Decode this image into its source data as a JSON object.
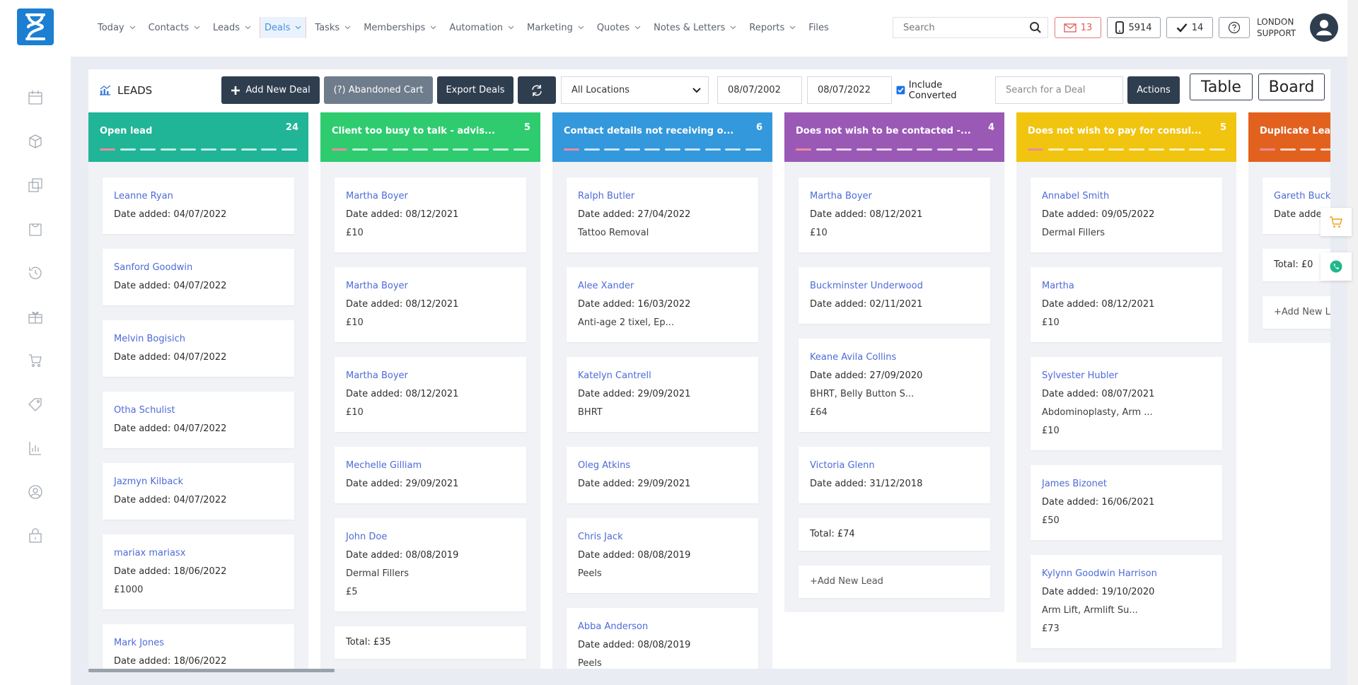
{
  "nav": {
    "items": [
      "Today",
      "Contacts",
      "Leads",
      "Deals",
      "Tasks",
      "Memberships",
      "Automation",
      "Marketing",
      "Quotes",
      "Notes & Letters",
      "Reports",
      "Files"
    ],
    "active": 3
  },
  "header": {
    "search_placeholder": "Search",
    "mail_count": "13",
    "phone_count": "5914",
    "task_count": "14",
    "user_line1": "LONDON",
    "user_line2": "SUPPORT"
  },
  "toolbar": {
    "title": "LEADS",
    "add_button": "Add New Deal",
    "abandoned_button": "(?) Abandoned Cart",
    "export_button": "Export Deals",
    "location": "All Locations",
    "date_from": "08/07/2002",
    "date_to": "08/07/2022",
    "include_converted": "Include Converted",
    "deal_search_placeholder": "Search for a Deal",
    "actions_button": "Actions",
    "table_button": "Table",
    "board_button": "Board"
  },
  "columns": [
    {
      "title": "Open lead",
      "count": 24,
      "color": "#1fb596",
      "cards": [
        {
          "name": "Leanne Ryan",
          "date": "Date added: 04/07/2022",
          "lines": []
        },
        {
          "name": "Sanford Goodwin",
          "date": "Date added: 04/07/2022",
          "lines": []
        },
        {
          "name": "Melvin Bogisich",
          "date": "Date added: 04/07/2022",
          "lines": []
        },
        {
          "name": "Otha Schulist",
          "date": "Date added: 04/07/2022",
          "lines": []
        },
        {
          "name": "Jazmyn Kilback",
          "date": "Date added: 04/07/2022",
          "lines": []
        },
        {
          "name": "mariax mariasx",
          "date": "Date added: 18/06/2022",
          "lines": [
            "£1000"
          ]
        },
        {
          "name": "Mark Jones",
          "date": "Date added: 18/06/2022",
          "lines": []
        }
      ]
    },
    {
      "title": "Client too busy to talk - advis...",
      "count": 5,
      "color": "#2ecc6f",
      "cards": [
        {
          "name": "Martha Boyer",
          "date": "Date added: 08/12/2021",
          "lines": [
            "£10"
          ]
        },
        {
          "name": "Martha Boyer",
          "date": "Date added: 08/12/2021",
          "lines": [
            "£10"
          ]
        },
        {
          "name": "Martha Boyer",
          "date": "Date added: 08/12/2021",
          "lines": [
            "£10"
          ]
        },
        {
          "name": "Mechelle Gilliam",
          "date": "Date added: 29/09/2021",
          "lines": []
        },
        {
          "name": "John Doe",
          "date": "Date added: 08/08/2019",
          "lines": [
            "Dermal Fillers",
            "£5"
          ]
        }
      ],
      "total": "Total: £35"
    },
    {
      "title": "Contact details not receiving o...",
      "count": 6,
      "color": "#3398dc",
      "cards": [
        {
          "name": "Ralph Butler",
          "date": "Date added: 27/04/2022",
          "lines": [
            "Tattoo Removal"
          ]
        },
        {
          "name": "Alee Xander",
          "date": "Date added: 16/03/2022",
          "lines": [
            "Anti-age 2 tixel, Ep..."
          ]
        },
        {
          "name": "Katelyn Cantrell",
          "date": "Date added: 29/09/2021",
          "lines": [
            "BHRT"
          ]
        },
        {
          "name": "Oleg Atkins",
          "date": "Date added: 29/09/2021",
          "lines": []
        },
        {
          "name": "Chris Jack",
          "date": "Date added: 08/08/2019",
          "lines": [
            "Peels"
          ]
        },
        {
          "name": "Abba Anderson",
          "date": "Date added: 08/08/2019",
          "lines": [
            "Peels"
          ]
        }
      ]
    },
    {
      "title": "Does not wish to be contacted -...",
      "count": 4,
      "color": "#9b59b6",
      "cards": [
        {
          "name": "Martha Boyer",
          "date": "Date added: 08/12/2021",
          "lines": [
            "£10"
          ]
        },
        {
          "name": "Buckminster Underwood",
          "date": "Date added: 02/11/2021",
          "lines": []
        },
        {
          "name": "Keane Avila Collins",
          "date": "Date added: 27/09/2020",
          "lines": [
            "BHRT, Belly Button S...",
            "£64"
          ]
        },
        {
          "name": "Victoria Glenn",
          "date": "Date added: 31/12/2018",
          "lines": []
        }
      ],
      "total": "Total: £74",
      "add_lead": "+Add New Lead"
    },
    {
      "title": "Does not wish to pay for consul...",
      "count": 5,
      "color": "#f1c40f",
      "cards": [
        {
          "name": "Annabel Smith",
          "date": "Date added: 09/05/2022",
          "lines": [
            "Dermal Fillers"
          ]
        },
        {
          "name": "Martha",
          "date": "Date added: 08/12/2021",
          "lines": [
            "£10"
          ]
        },
        {
          "name": "Sylvester Hubler",
          "date": "Date added: 08/07/2021",
          "lines": [
            "Abdominoplasty, Arm ...",
            "£10"
          ]
        },
        {
          "name": "James Bizonet",
          "date": "Date added: 16/06/2021",
          "lines": [
            "£50"
          ]
        },
        {
          "name": "Kylynn Goodwin Harrison",
          "date": "Date added: 19/10/2020",
          "lines": [
            "Arm Lift, Armlift Su...",
            "£73"
          ]
        }
      ]
    },
    {
      "title": "Duplicate Lead",
      "color": "#e2611f",
      "cards": [
        {
          "name": "Gareth Buck",
          "date": "Date adde",
          "lines": []
        }
      ],
      "total": "Total: £0",
      "add_lead": "+Add New L"
    }
  ]
}
